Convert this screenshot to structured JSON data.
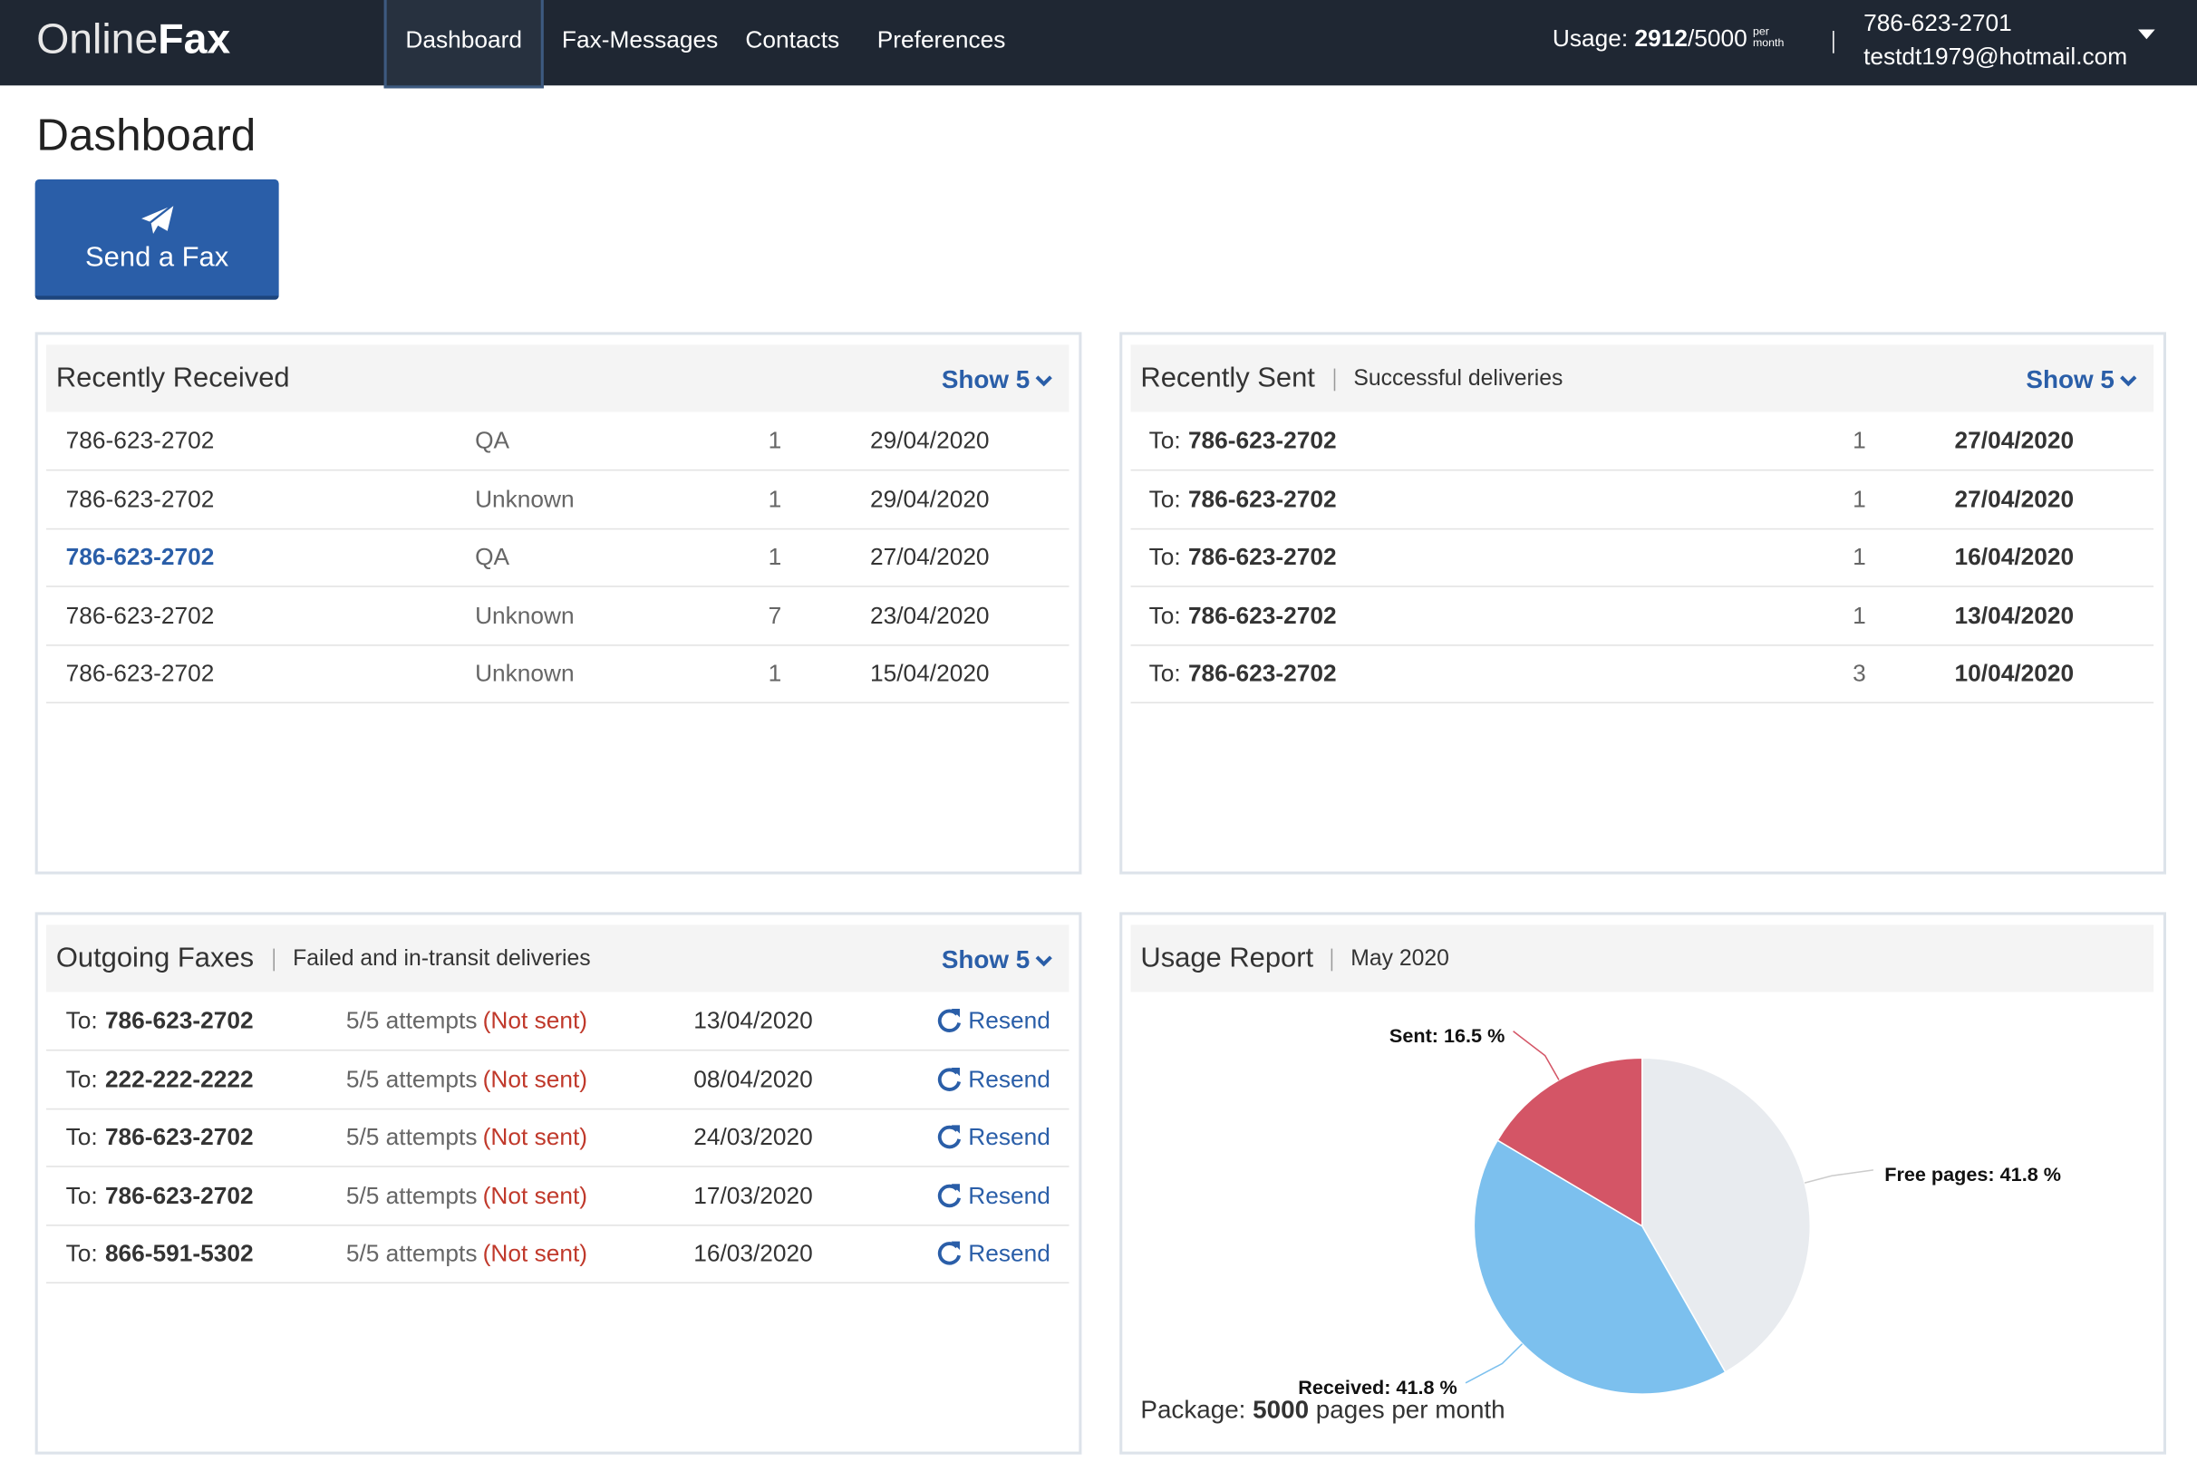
{
  "nav": {
    "logo_light": "Online",
    "logo_bold": "Fax",
    "items": [
      "Dashboard",
      "Fax-Messages",
      "Contacts",
      "Preferences"
    ],
    "usage": {
      "label": "Usage:",
      "used": "2912",
      "total": "/5000",
      "per": "per",
      "month": "month"
    },
    "account": {
      "phone": "786-623-2701",
      "email": "testdt1979@hotmail.com"
    }
  },
  "page_title": "Dashboard",
  "send_button": "Send a Fax",
  "recently_received": {
    "title": "Recently Received",
    "show": "Show 5",
    "rows": [
      {
        "number": "786-623-2702",
        "name": "QA",
        "pages": "1",
        "date": "29/04/2020"
      },
      {
        "number": "786-623-2702",
        "name": "Unknown",
        "pages": "1",
        "date": "29/04/2020"
      },
      {
        "number": "786-623-2702",
        "name": "QA",
        "pages": "1",
        "date": "27/04/2020"
      },
      {
        "number": "786-623-2702",
        "name": "Unknown",
        "pages": "7",
        "date": "23/04/2020"
      },
      {
        "number": "786-623-2702",
        "name": "Unknown",
        "pages": "1",
        "date": "15/04/2020"
      }
    ]
  },
  "recently_sent": {
    "title": "Recently Sent",
    "subtitle": "Successful deliveries",
    "show": "Show 5",
    "rows": [
      {
        "prefix": "To:",
        "number": "786-623-2702",
        "pages": "1",
        "date": "27/04/2020"
      },
      {
        "prefix": "To:",
        "number": "786-623-2702",
        "pages": "1",
        "date": "27/04/2020"
      },
      {
        "prefix": "To:",
        "number": "786-623-2702",
        "pages": "1",
        "date": "16/04/2020"
      },
      {
        "prefix": "To:",
        "number": "786-623-2702",
        "pages": "1",
        "date": "13/04/2020"
      },
      {
        "prefix": "To:",
        "number": "786-623-2702",
        "pages": "3",
        "date": "10/04/2020"
      }
    ]
  },
  "outgoing": {
    "title": "Outgoing Faxes",
    "subtitle": "Failed and in-transit deliveries",
    "show": "Show 5",
    "rows": [
      {
        "prefix": "To:",
        "number": "786-623-2702",
        "attempts": "5/5 attempts",
        "status": "(Not sent)",
        "date": "13/04/2020",
        "action": "Resend"
      },
      {
        "prefix": "To:",
        "number": "222-222-2222",
        "attempts": "5/5 attempts",
        "status": "(Not sent)",
        "date": "08/04/2020",
        "action": "Resend"
      },
      {
        "prefix": "To:",
        "number": "786-623-2702",
        "attempts": "5/5 attempts",
        "status": "(Not sent)",
        "date": "24/03/2020",
        "action": "Resend"
      },
      {
        "prefix": "To:",
        "number": "786-623-2702",
        "attempts": "5/5 attempts",
        "status": "(Not sent)",
        "date": "17/03/2020",
        "action": "Resend"
      },
      {
        "prefix": "To:",
        "number": "866-591-5302",
        "attempts": "5/5 attempts",
        "status": "(Not sent)",
        "date": "16/03/2020",
        "action": "Resend"
      }
    ]
  },
  "usage_report": {
    "title": "Usage Report",
    "subtitle": "May 2020",
    "chart_data": {
      "type": "pie",
      "slices": [
        {
          "label": "Free pages: 41.8 %",
          "value": 41.8,
          "color": "#e8ebef"
        },
        {
          "label": "Received: 41.8 %",
          "value": 41.8,
          "color": "#7cc0ee"
        },
        {
          "label": "Sent: 16.5 %",
          "value": 16.5,
          "color": "#d45566"
        }
      ]
    },
    "package": {
      "label": "Package:",
      "value": "5000",
      "unit": "pages per month"
    }
  }
}
